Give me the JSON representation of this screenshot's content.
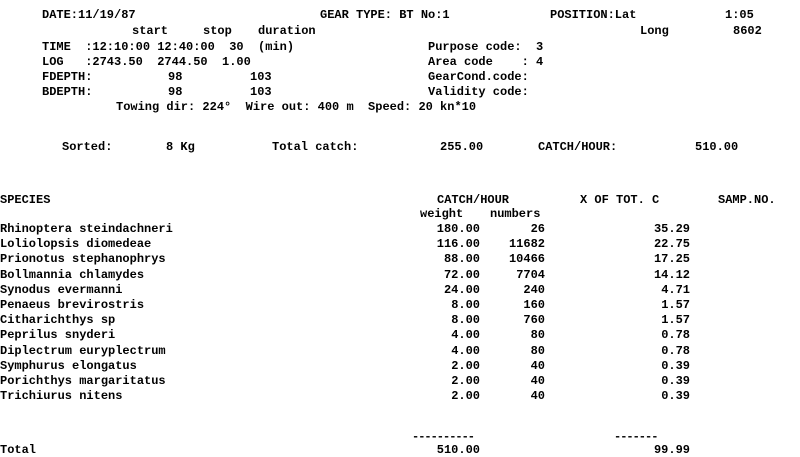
{
  "header": {
    "date": "DATE:11/19/87",
    "gear_type": "GEAR TYPE: BT No:1",
    "position_lat_label": "POSITION:Lat",
    "lat": "1:05",
    "long_label": "Long",
    "long": "8602",
    "col_start": "start",
    "col_stop": "stop",
    "col_duration": "duration",
    "time_label": "TIME  :12:10:00 12:40:00  30  (min)",
    "log_label": "LOG   :2743.50  2744.50  1.00",
    "fdepth_label": "FDEPTH:",
    "fdepth_start": "98",
    "fdepth_stop": "103",
    "bdepth_label": "BDEPTH:",
    "bdepth_start": "98",
    "bdepth_stop": "103",
    "purpose": "Purpose code:  3",
    "area": "Area code    : 4",
    "gearcond": "GearCond.code:",
    "validity": "Validity code:",
    "towing": "Towing dir: 224°  Wire out: 400 m  Speed: 20 kn*10"
  },
  "summary": {
    "sorted_label": "Sorted:",
    "sorted": "8 Kg",
    "total_label": "Total catch:",
    "total": "255.00",
    "cph_label": "CATCH/HOUR:",
    "cph": "510.00"
  },
  "table": {
    "species_header": "SPECIES",
    "catch_header": "CATCH/HOUR",
    "pct_header": "X OF TOT. C",
    "samp_header": "SAMP.NO.",
    "weight_header": "weight",
    "numbers_header": "numbers",
    "rows": [
      {
        "species": "Rhinoptera steindachneri",
        "weight": "180.00",
        "numbers": "26",
        "pct": "35.29"
      },
      {
        "species": "Loliolopsis diomedeae",
        "weight": "116.00",
        "numbers": "11682",
        "pct": "22.75"
      },
      {
        "species": "Prionotus stephanophrys",
        "weight": "88.00",
        "numbers": "10466",
        "pct": "17.25"
      },
      {
        "species": "Bollmannia chlamydes",
        "weight": "72.00",
        "numbers": "7704",
        "pct": "14.12"
      },
      {
        "species": "Synodus evermanni",
        "weight": "24.00",
        "numbers": "240",
        "pct": "4.71"
      },
      {
        "species": "Penaeus brevirostris",
        "weight": "8.00",
        "numbers": "160",
        "pct": "1.57"
      },
      {
        "species": "Citharichthys sp",
        "weight": "8.00",
        "numbers": "760",
        "pct": "1.57"
      },
      {
        "species": "Peprilus snyderi",
        "weight": "4.00",
        "numbers": "80",
        "pct": "0.78"
      },
      {
        "species": "Diplectrum euryplectrum",
        "weight": "4.00",
        "numbers": "80",
        "pct": "0.78"
      },
      {
        "species": "Symphurus elongatus",
        "weight": "2.00",
        "numbers": "40",
        "pct": "0.39"
      },
      {
        "species": "Porichthys margaritatus",
        "weight": "2.00",
        "numbers": "40",
        "pct": "0.39"
      },
      {
        "species": "Trichiurus nitens",
        "weight": "2.00",
        "numbers": "40",
        "pct": "0.39"
      }
    ],
    "total_label": "Total",
    "total_weight": "510.00",
    "total_pct": "99.99",
    "dash_weight": "----------",
    "dash_pct": "-------"
  }
}
